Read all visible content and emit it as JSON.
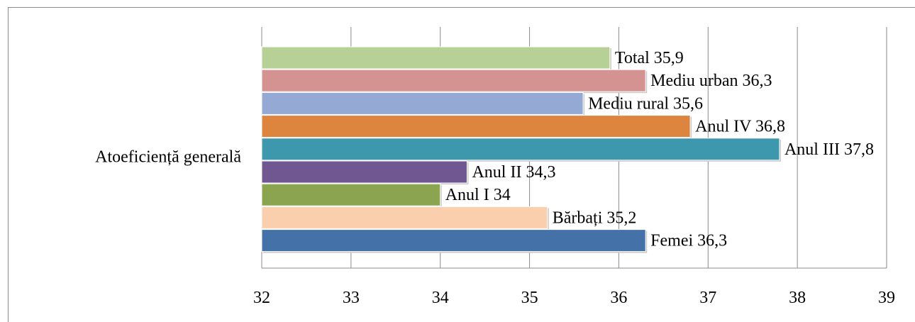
{
  "chart_data": {
    "type": "bar",
    "orientation": "horizontal",
    "category": "Atoeficiență generală",
    "xlim": [
      32,
      39
    ],
    "xticks": [
      "32",
      "33",
      "34",
      "35",
      "36",
      "37",
      "38",
      "39"
    ],
    "grid": true,
    "legend": "none",
    "series": [
      {
        "name": "Total",
        "value": 35.9,
        "label": "Total 35,9",
        "color": "#b7d095"
      },
      {
        "name": "Mediu urban",
        "value": 36.3,
        "label": "Mediu urban 36,3",
        "color": "#d49290"
      },
      {
        "name": "Mediu rural",
        "value": 35.6,
        "label": "Mediu rural 35,6",
        "color": "#94aad4"
      },
      {
        "name": "Anul IV",
        "value": 36.8,
        "label": "Anul IV 36,8",
        "color": "#dd843e"
      },
      {
        "name": "Anul III",
        "value": 37.8,
        "label": "Anul III 37,8",
        "color": "#3d97ad"
      },
      {
        "name": "Anul II",
        "value": 34.3,
        "label": "Anul II 34,3",
        "color": "#715791"
      },
      {
        "name": "Anul I",
        "value": 34,
        "label": "Anul I 34",
        "color": "#8aa44f"
      },
      {
        "name": "Bărbați",
        "value": 35.2,
        "label": "Bărbați 35,2",
        "color": "#f9cfae"
      },
      {
        "name": "Femei",
        "value": 36.3,
        "label": "Femei 36,3",
        "color": "#4472a8"
      }
    ]
  }
}
